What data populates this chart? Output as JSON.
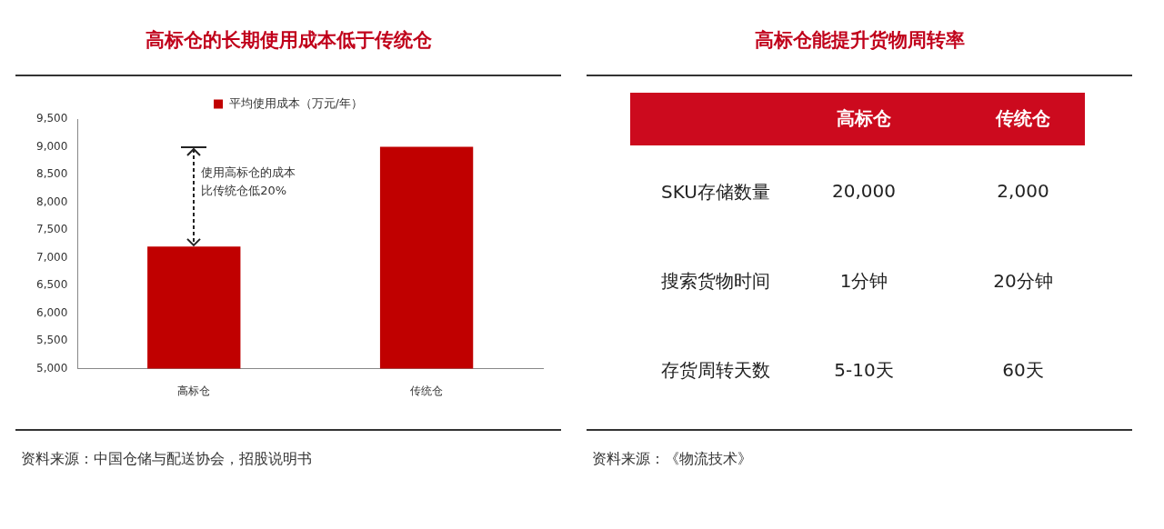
{
  "chart_data": [
    {
      "type": "bar",
      "title": "高标仓的长期使用成本低于传统仓",
      "categories": [
        "高标仓",
        "传统仓"
      ],
      "series": [
        {
          "name": "平均使用成本（万元/年）",
          "color": "#c00000",
          "values": [
            7200,
            9000
          ]
        }
      ],
      "ylim": [
        5000,
        9500
      ],
      "yticks": [
        {
          "value": 5000,
          "label": "5,000"
        },
        {
          "value": 5500,
          "label": "5,500"
        },
        {
          "value": 6000,
          "label": "6,000"
        },
        {
          "value": 6500,
          "label": "6,500"
        },
        {
          "value": 7000,
          "label": "7,000"
        },
        {
          "value": 7500,
          "label": "7,500"
        },
        {
          "value": 8000,
          "label": "8,000"
        },
        {
          "value": 8500,
          "label": "8,500"
        },
        {
          "value": 9000,
          "label": "9,000"
        },
        {
          "value": 9500,
          "label": "9,500"
        }
      ],
      "grid": false,
      "legend": "top",
      "annotations": [
        "使用高标仓的成本比传统仓低20%",
        "资料来源：中国仓储与配送协会，招股说明书"
      ]
    },
    {
      "type": "other",
      "title": "高标仓能提升货物周转率",
      "categories": [
        "高标仓",
        "传统仓"
      ],
      "y_categories": [
        "SKU存储数量",
        "搜索货物时间",
        "存货周转天数"
      ],
      "cell_labels": [
        [
          "20,000",
          "2,000"
        ],
        [
          "1分钟",
          "20分钟"
        ],
        [
          "5-10天",
          "60天"
        ]
      ],
      "annotations": [
        "资料来源：《物流技术》"
      ]
    }
  ]
}
